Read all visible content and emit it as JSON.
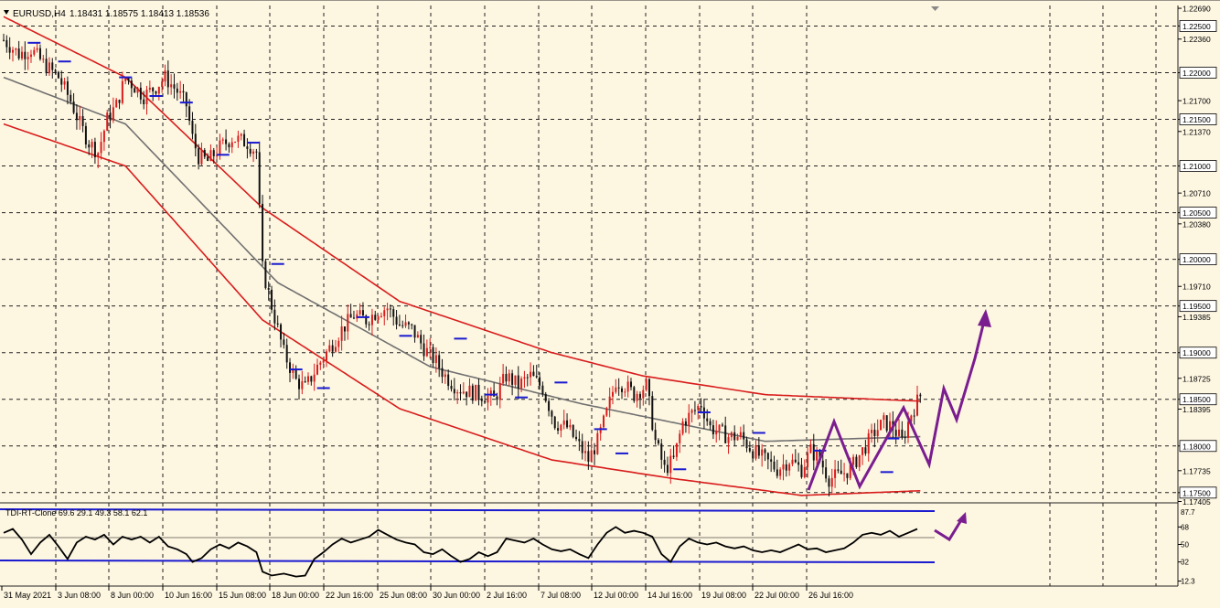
{
  "header": {
    "symbol": "EURUSD,H4",
    "ohlc": "1.18431 1.18575 1.18413 1.18536"
  },
  "indicator": {
    "label": "TDI-RT-Clone 69.6 29.1 49.3 58.1 62.1",
    "levels": [
      {
        "value": "68",
        "v": 68
      },
      {
        "value": "50",
        "v": 50
      },
      {
        "value": "32",
        "v": 32
      },
      {
        "value": "12.3",
        "v": 12.3
      }
    ],
    "top_label": "87.7",
    "upper_band_level": 68,
    "lower_band_level": 32
  },
  "price_axis": {
    "min": 1.174,
    "max": 1.2272,
    "ticks": [
      {
        "label": "1.22690",
        "v": 1.2269,
        "box": false
      },
      {
        "label": "1.22500",
        "v": 1.225,
        "box": true
      },
      {
        "label": "1.22360",
        "v": 1.2236,
        "box": false
      },
      {
        "label": "1.22000",
        "v": 1.22,
        "box": true
      },
      {
        "label": "1.21700",
        "v": 1.217,
        "box": false
      },
      {
        "label": "1.21500",
        "v": 1.215,
        "box": true
      },
      {
        "label": "1.21370",
        "v": 1.2137,
        "box": false
      },
      {
        "label": "1.21000",
        "v": 1.21,
        "box": true
      },
      {
        "label": "1.20710",
        "v": 1.2071,
        "box": false
      },
      {
        "label": "1.20500",
        "v": 1.205,
        "box": true
      },
      {
        "label": "1.20380",
        "v": 1.2038,
        "box": false
      },
      {
        "label": "1.20000",
        "v": 1.2,
        "box": true
      },
      {
        "label": "1.19710",
        "v": 1.1971,
        "box": false
      },
      {
        "label": "1.19500",
        "v": 1.195,
        "box": true
      },
      {
        "label": "1.19385",
        "v": 1.19385,
        "box": false
      },
      {
        "label": "1.19000",
        "v": 1.19,
        "box": true
      },
      {
        "label": "1.18725",
        "v": 1.18725,
        "box": false
      },
      {
        "label": "1.18500",
        "v": 1.185,
        "box": true
      },
      {
        "label": "1.18395",
        "v": 1.18395,
        "box": false
      },
      {
        "label": "1.18000",
        "v": 1.18,
        "box": true
      },
      {
        "label": "1.17735",
        "v": 1.17735,
        "box": false
      },
      {
        "label": "1.17500",
        "v": 1.175,
        "box": true
      },
      {
        "label": "1.17405",
        "v": 1.17405,
        "box": false
      }
    ]
  },
  "time_axis": [
    "31 May 2021",
    "3 Jun 08:00",
    "8 Jun 00:00",
    "10 Jun 16:00",
    "15 Jun 08:00",
    "18 Jun 00:00",
    "22 Jun 16:00",
    "25 Jun 08:00",
    "30 Jun 00:00",
    "2 Jul 16:00",
    "7 Jul 08:00",
    "12 Jul 00:00",
    "14 Jul 16:00",
    "19 Jul 08:00",
    "22 Jul 00:00",
    "26 Jul 16:00"
  ],
  "colors": {
    "background": "#fdf6e1",
    "grid": "#222222",
    "envelope": "#d81c1c",
    "midline": "#707070",
    "bull_candle": "#d81c1c",
    "bear_candle": "#111111",
    "fractal": "#1a1ad0",
    "forecast_arrow": "#7a1d8f",
    "tdi_line": "#000000",
    "tdi_band": "#1a1ad0"
  },
  "chart_data": {
    "type": "candlestick",
    "symbol": "EURUSD",
    "timeframe": "H4",
    "ylim": [
      1.174,
      1.2272
    ],
    "price_path": [
      [
        0,
        1.2235
      ],
      [
        5,
        1.222
      ],
      [
        9,
        1.2225
      ],
      [
        13,
        1.221
      ],
      [
        18,
        1.2195
      ],
      [
        22,
        1.217
      ],
      [
        25,
        1.2145
      ],
      [
        28,
        1.2125
      ],
      [
        31,
        1.2115
      ],
      [
        34,
        1.215
      ],
      [
        37,
        1.2165
      ],
      [
        40,
        1.2195
      ],
      [
        43,
        1.2185
      ],
      [
        46,
        1.2175
      ],
      [
        50,
        1.2185
      ],
      [
        53,
        1.2195
      ],
      [
        57,
        1.218
      ],
      [
        60,
        1.2165
      ],
      [
        62,
        1.213
      ],
      [
        64,
        1.211
      ],
      [
        67,
        1.2105
      ],
      [
        71,
        1.212
      ],
      [
        75,
        1.213
      ],
      [
        80,
        1.2125
      ],
      [
        83,
        1.2115
      ],
      [
        85,
        1.199
      ],
      [
        88,
        1.195
      ],
      [
        92,
        1.19
      ],
      [
        96,
        1.187
      ],
      [
        99,
        1.1862
      ],
      [
        103,
        1.1885
      ],
      [
        107,
        1.1905
      ],
      [
        111,
        1.1925
      ],
      [
        115,
        1.194
      ],
      [
        119,
        1.1935
      ],
      [
        123,
        1.1945
      ],
      [
        126,
        1.1948
      ],
      [
        130,
        1.193
      ],
      [
        134,
        1.1925
      ],
      [
        138,
        1.1905
      ],
      [
        142,
        1.189
      ],
      [
        145,
        1.1875
      ],
      [
        149,
        1.1862
      ],
      [
        153,
        1.1858
      ],
      [
        157,
        1.1855
      ],
      [
        161,
        1.185
      ],
      [
        165,
        1.1875
      ],
      [
        169,
        1.1865
      ],
      [
        173,
        1.1875
      ],
      [
        177,
        1.1862
      ],
      [
        181,
        1.1825
      ],
      [
        185,
        1.182
      ],
      [
        189,
        1.18
      ],
      [
        192,
        1.1785
      ],
      [
        195,
        1.1805
      ],
      [
        198,
        1.1835
      ],
      [
        201,
        1.187
      ],
      [
        204,
        1.1865
      ],
      [
        207,
        1.1855
      ],
      [
        211,
        1.1865
      ],
      [
        214,
        1.1805
      ],
      [
        217,
        1.1775
      ],
      [
        220,
        1.1785
      ],
      [
        223,
        1.1825
      ],
      [
        226,
        1.1835
      ],
      [
        229,
        1.1845
      ],
      [
        232,
        1.182
      ],
      [
        235,
        1.1815
      ],
      [
        238,
        1.181
      ],
      [
        242,
        1.181
      ],
      [
        246,
        1.1795
      ],
      [
        250,
        1.1785
      ],
      [
        254,
        1.1775
      ],
      [
        258,
        1.1785
      ],
      [
        262,
        1.1775
      ],
      [
        265,
        1.1795
      ],
      [
        268,
        1.1785
      ],
      [
        271,
        1.1765
      ],
      [
        274,
        1.1768
      ],
      [
        278,
        1.1775
      ],
      [
        282,
        1.1795
      ],
      [
        286,
        1.1815
      ],
      [
        289,
        1.1825
      ],
      [
        292,
        1.182
      ],
      [
        295,
        1.1805
      ],
      [
        298,
        1.1835
      ],
      [
        301,
        1.1854
      ]
    ],
    "bands": {
      "upper": [
        [
          0,
          1.226
        ],
        [
          40,
          1.2195
        ],
        [
          85,
          1.2055
        ],
        [
          130,
          1.1955
        ],
        [
          180,
          1.19
        ],
        [
          210,
          1.1875
        ],
        [
          250,
          1.1855
        ],
        [
          301,
          1.1848
        ]
      ],
      "middle": [
        [
          0,
          1.2195
        ],
        [
          40,
          1.2145
        ],
        [
          90,
          1.1975
        ],
        [
          140,
          1.1885
        ],
        [
          190,
          1.1845
        ],
        [
          250,
          1.1805
        ],
        [
          301,
          1.181
        ]
      ],
      "lower": [
        [
          0,
          1.2145
        ],
        [
          40,
          1.21
        ],
        [
          85,
          1.1935
        ],
        [
          130,
          1.184
        ],
        [
          180,
          1.1785
        ],
        [
          220,
          1.1765
        ],
        [
          262,
          1.1747
        ],
        [
          301,
          1.1752
        ]
      ]
    },
    "forecast": {
      "wave_upper": [
        [
          1.1835,
          1.1825
        ],
        [
          1.1755,
          1.1785
        ],
        [
          1.1843,
          1.1835
        ],
        [
          1.1775,
          1.1785
        ],
        [
          1.1863,
          1.1835
        ],
        [
          1.183,
          1.1842
        ],
        [
          1.189,
          1.1868
        ],
        [
          1.1945,
          1.1868
        ]
      ]
    },
    "tdi": [
      [
        0,
        62
      ],
      [
        3,
        66
      ],
      [
        6,
        55
      ],
      [
        9,
        40
      ],
      [
        12,
        52
      ],
      [
        15,
        60
      ],
      [
        18,
        48
      ],
      [
        21,
        35
      ],
      [
        24,
        52
      ],
      [
        27,
        58
      ],
      [
        30,
        55
      ],
      [
        33,
        60
      ],
      [
        36,
        50
      ],
      [
        39,
        58
      ],
      [
        42,
        55
      ],
      [
        45,
        58
      ],
      [
        48,
        52
      ],
      [
        51,
        58
      ],
      [
        54,
        48
      ],
      [
        57,
        45
      ],
      [
        60,
        40
      ],
      [
        62,
        32
      ],
      [
        65,
        36
      ],
      [
        68,
        45
      ],
      [
        71,
        50
      ],
      [
        74,
        46
      ],
      [
        77,
        52
      ],
      [
        80,
        48
      ],
      [
        83,
        42
      ],
      [
        85,
        22
      ],
      [
        88,
        18
      ],
      [
        92,
        20
      ],
      [
        96,
        17
      ],
      [
        99,
        18
      ],
      [
        102,
        35
      ],
      [
        105,
        42
      ],
      [
        108,
        50
      ],
      [
        111,
        56
      ],
      [
        114,
        52
      ],
      [
        117,
        55
      ],
      [
        120,
        58
      ],
      [
        123,
        65
      ],
      [
        126,
        60
      ],
      [
        129,
        55
      ],
      [
        132,
        52
      ],
      [
        135,
        50
      ],
      [
        138,
        42
      ],
      [
        141,
        40
      ],
      [
        144,
        45
      ],
      [
        147,
        38
      ],
      [
        150,
        32
      ],
      [
        153,
        35
      ],
      [
        156,
        42
      ],
      [
        159,
        38
      ],
      [
        162,
        42
      ],
      [
        165,
        56
      ],
      [
        168,
        54
      ],
      [
        171,
        52
      ],
      [
        174,
        56
      ],
      [
        177,
        50
      ],
      [
        180,
        45
      ],
      [
        183,
        43
      ],
      [
        186,
        45
      ],
      [
        189,
        40
      ],
      [
        192,
        36
      ],
      [
        195,
        50
      ],
      [
        198,
        62
      ],
      [
        201,
        68
      ],
      [
        204,
        62
      ],
      [
        207,
        64
      ],
      [
        210,
        62
      ],
      [
        213,
        58
      ],
      [
        216,
        40
      ],
      [
        219,
        32
      ],
      [
        222,
        48
      ],
      [
        225,
        56
      ],
      [
        228,
        52
      ],
      [
        231,
        50
      ],
      [
        234,
        52
      ],
      [
        237,
        48
      ],
      [
        240,
        46
      ],
      [
        243,
        48
      ],
      [
        246,
        44
      ],
      [
        249,
        42
      ],
      [
        252,
        44
      ],
      [
        255,
        42
      ],
      [
        258,
        46
      ],
      [
        261,
        50
      ],
      [
        264,
        45
      ],
      [
        267,
        46
      ],
      [
        270,
        42
      ],
      [
        273,
        44
      ],
      [
        276,
        46
      ],
      [
        279,
        52
      ],
      [
        282,
        60
      ],
      [
        285,
        62
      ],
      [
        288,
        60
      ],
      [
        291,
        64
      ],
      [
        294,
        58
      ],
      [
        297,
        62
      ],
      [
        300,
        66
      ]
    ]
  }
}
